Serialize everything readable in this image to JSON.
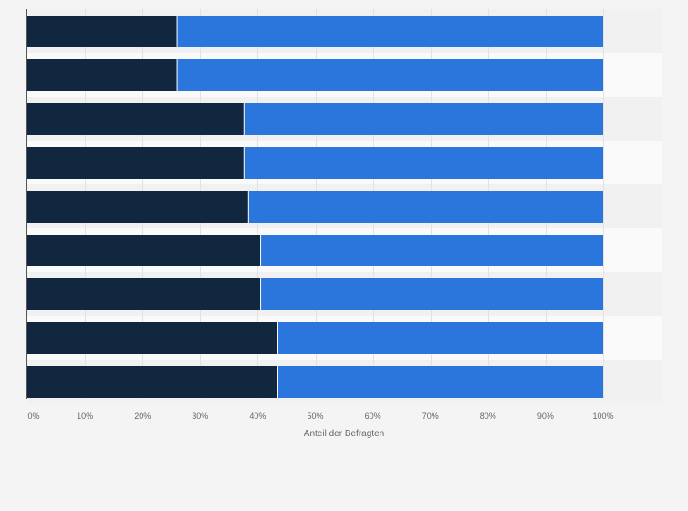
{
  "chart_data": {
    "type": "bar",
    "orientation": "horizontal",
    "stacked": true,
    "xlabel": "Anteil der Befragten",
    "ylabel": "",
    "xlim": [
      0,
      100
    ],
    "x_ticks": [
      "0%",
      "10%",
      "20%",
      "30%",
      "40%",
      "50%",
      "60%",
      "70%",
      "80%",
      "90%",
      "100%"
    ],
    "grid": true,
    "legend": "none",
    "series": [
      {
        "values": [
          26,
          26,
          37.6,
          37.6,
          38.4,
          40.5,
          40.5,
          43.5,
          43.5
        ],
        "color": "#10273f"
      },
      {
        "values": [
          74,
          74,
          62.4,
          62.4,
          61.6,
          59.5,
          59.5,
          56.5,
          56.5
        ],
        "color": "#2a76dd"
      }
    ]
  }
}
